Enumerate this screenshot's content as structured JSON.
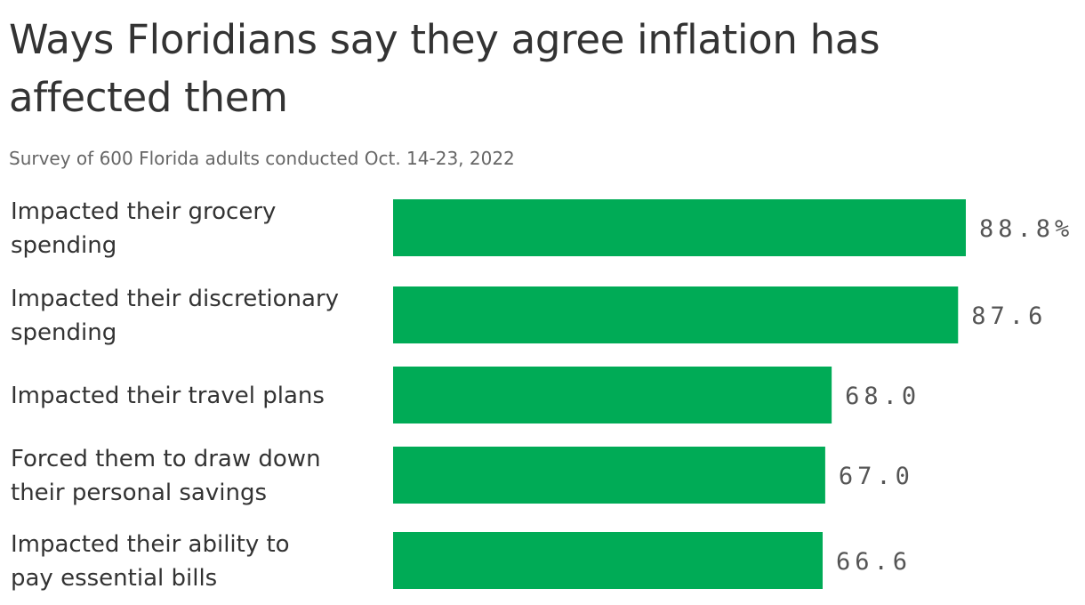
{
  "title": "Ways Floridians say they agree inflation has affected them",
  "subtitle": "Survey of 600 Florida adults conducted Oct. 14-23, 2022",
  "colors": {
    "bar": "#00ab56",
    "text": "#333333",
    "subtitle": "#666666",
    "value_label": "#555555"
  },
  "chart_data": {
    "type": "bar",
    "orientation": "horizontal",
    "categories": [
      "Impacted their grocery spending",
      "Impacted their discretionary spending",
      "Impacted their travel plans",
      "Forced them to draw down their personal savings",
      "Impacted their ability to pay essential bills"
    ],
    "values": [
      88.8,
      87.6,
      68.0,
      67.0,
      66.6
    ],
    "data_labels": [
      "88.8%",
      "87.6",
      "68.0",
      "67.0",
      "66.6"
    ],
    "xlim": [
      0,
      88.8
    ],
    "grid": false,
    "legend": "none"
  }
}
